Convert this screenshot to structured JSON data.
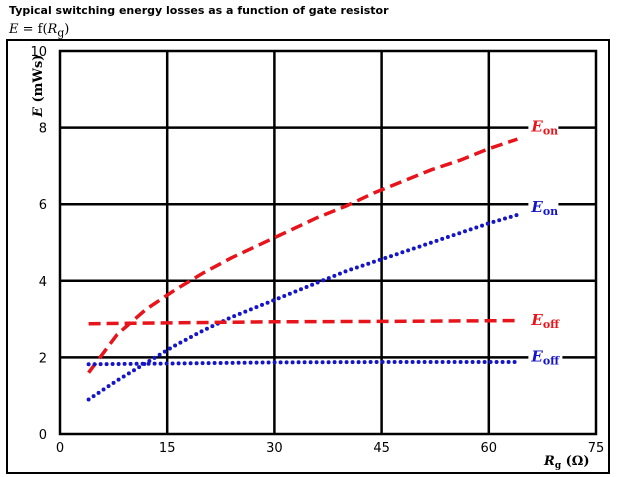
{
  "header": {
    "title": "Typical switching energy losses as a function of gate resistor",
    "formula_lhs": "E",
    "formula_mid": " = f(",
    "formula_var": "R",
    "formula_sub": "g",
    "formula_end": ")"
  },
  "chart_data": {
    "type": "line",
    "title": "Typical switching energy losses as a function of gate resistor",
    "xlabel": "R_g (Ω)",
    "ylabel": "E (mWs)",
    "xlim": [
      0,
      75
    ],
    "ylim": [
      0,
      10
    ],
    "x_ticks": [
      0,
      15,
      30,
      45,
      60,
      75
    ],
    "y_ticks": [
      0,
      2,
      4,
      6,
      8,
      10
    ],
    "grid": true,
    "axis_labels": {
      "x_main": "R",
      "x_sub": "g",
      "x_unit": " (Ω)",
      "y_main": "E",
      "y_unit": " (mWs)"
    },
    "series": [
      {
        "name": "E_on",
        "label_main": "E",
        "label_sub": "on",
        "color": "#e8141b",
        "style": "dashed",
        "x": [
          4,
          8,
          12,
          16,
          20,
          24,
          28,
          32,
          36,
          40,
          44,
          48,
          52,
          56,
          60,
          64
        ],
        "y": [
          1.6,
          2.6,
          3.25,
          3.75,
          4.2,
          4.6,
          4.95,
          5.3,
          5.65,
          5.95,
          6.3,
          6.6,
          6.9,
          7.15,
          7.45,
          7.7
        ]
      },
      {
        "name": "E_on",
        "label_main": "E",
        "label_sub": "on",
        "color": "#1414c8",
        "style": "dotted",
        "x": [
          4,
          8,
          12,
          16,
          20,
          24,
          28,
          32,
          36,
          40,
          44,
          48,
          52,
          56,
          60,
          64
        ],
        "y": [
          0.9,
          1.4,
          1.85,
          2.3,
          2.7,
          3.05,
          3.35,
          3.65,
          3.95,
          4.25,
          4.5,
          4.75,
          5.0,
          5.25,
          5.5,
          5.72
        ]
      },
      {
        "name": "E_off",
        "label_main": "E",
        "label_sub": "off",
        "color": "#e8141b",
        "style": "dashed",
        "x": [
          4,
          15,
          30,
          45,
          64
        ],
        "y": [
          2.88,
          2.9,
          2.93,
          2.94,
          2.96
        ]
      },
      {
        "name": "E_off",
        "label_main": "E",
        "label_sub": "off",
        "color": "#1414c8",
        "style": "dotted",
        "x": [
          4,
          15,
          30,
          45,
          64
        ],
        "y": [
          1.82,
          1.84,
          1.87,
          1.88,
          1.88
        ]
      }
    ],
    "legend_labels": [
      {
        "main": "E",
        "sub": "on",
        "color": "#e8141b",
        "at": [
          64,
          8.0
        ]
      },
      {
        "main": "E",
        "sub": "on",
        "color": "#1414c8",
        "at": [
          64,
          5.9
        ]
      },
      {
        "main": "E",
        "sub": "off",
        "color": "#e8141b",
        "at": [
          64,
          2.95
        ]
      },
      {
        "main": "E",
        "sub": "off",
        "color": "#1414c8",
        "at": [
          64,
          2.0
        ]
      }
    ]
  }
}
